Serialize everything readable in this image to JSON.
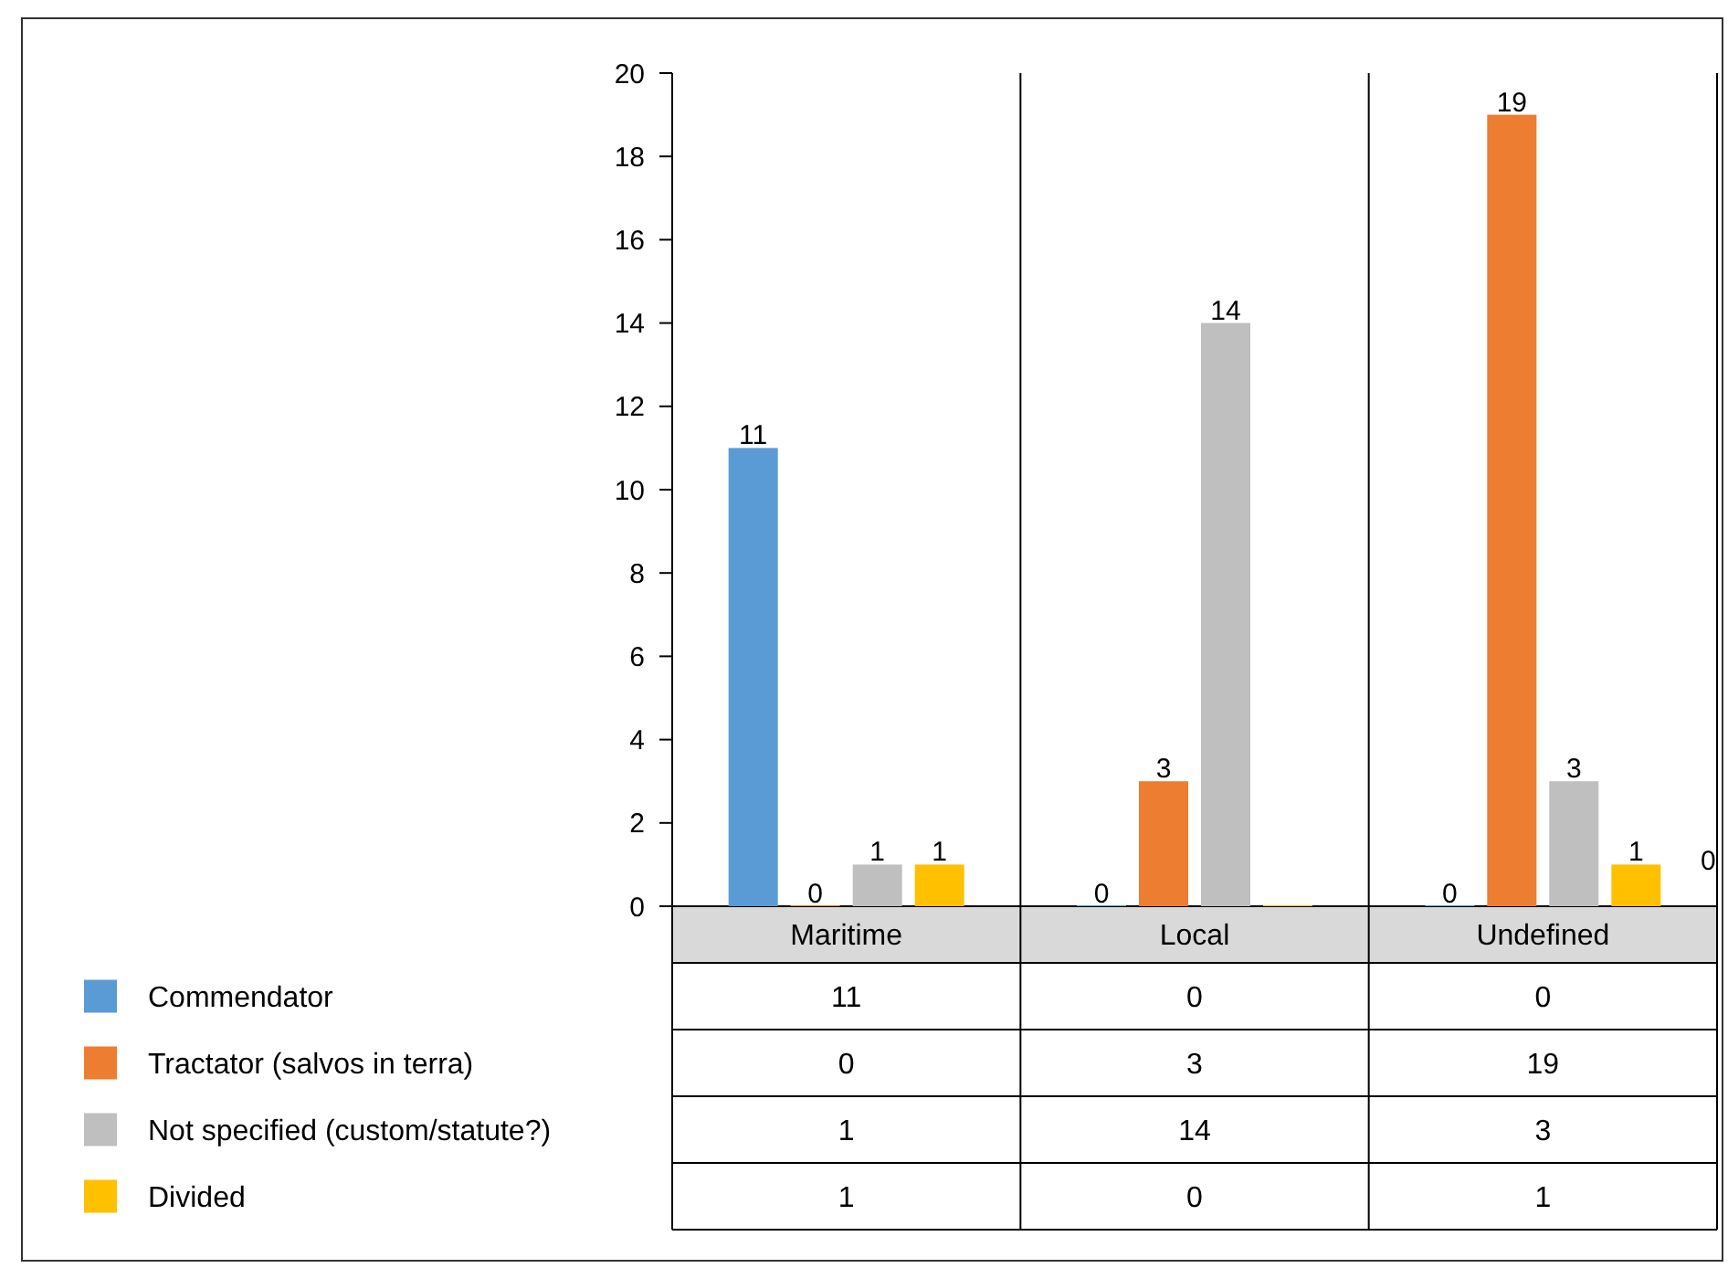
{
  "chart_data": {
    "type": "bar",
    "categories": [
      "Maritime",
      "Local",
      "Undefined"
    ],
    "series": [
      {
        "name": "Commendator",
        "color": "#5b9bd5",
        "values": [
          11,
          0,
          0
        ],
        "value_labels": [
          "11",
          "0",
          "0"
        ]
      },
      {
        "name": "Tractator (salvos in terra)",
        "color": "#ed7d31",
        "values": [
          0,
          3,
          19
        ],
        "value_labels": [
          "0",
          "3",
          "19"
        ]
      },
      {
        "name": "Not specified (custom/statute?)",
        "color": "#bfbfbf",
        "values": [
          1,
          14,
          3
        ],
        "value_labels": [
          "1",
          "14",
          "3"
        ]
      },
      {
        "name": "Divided",
        "color": "#ffc000",
        "values": [
          1,
          0,
          1
        ],
        "value_labels": [
          "1",
          null,
          "1"
        ]
      }
    ],
    "annotations": [
      "0",
      "11",
      "0",
      "0",
      "0",
      "3",
      "19",
      "1",
      "14",
      "3",
      "1",
      "0",
      "1"
    ],
    "ylim": [
      0,
      20
    ],
    "yticks": [
      0,
      2,
      4,
      6,
      8,
      10,
      12,
      14,
      16,
      18,
      20
    ],
    "grid": false,
    "legend": "bottom"
  }
}
